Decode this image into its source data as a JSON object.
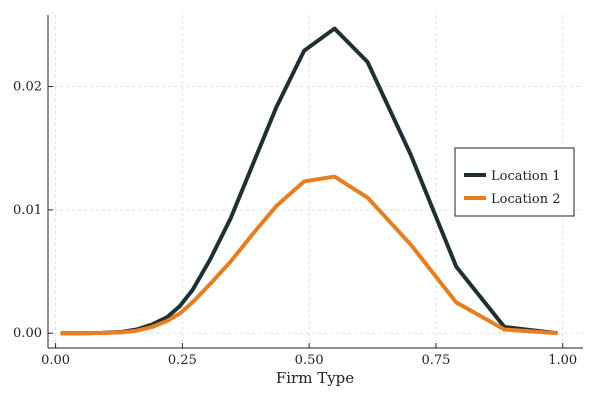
{
  "chart_data": {
    "type": "line",
    "title": "",
    "xlabel": "Firm Type",
    "ylabel": "",
    "xlim": [
      -0.015,
      1.04
    ],
    "ylim": [
      -0.0012,
      0.0258
    ],
    "xticks": [
      0.0,
      0.25,
      0.5,
      0.75,
      1.0
    ],
    "xtick_labels": [
      "0.00",
      "0.25",
      "0.50",
      "0.75",
      "1.00"
    ],
    "yticks": [
      0.0,
      0.01,
      0.02
    ],
    "ytick_labels": [
      "0.00",
      "0.01",
      "0.02"
    ],
    "grid": true,
    "legend_position": "right",
    "series": [
      {
        "name": "Location 1",
        "color": "#1f3035",
        "x": [
          0.01,
          0.05,
          0.09,
          0.13,
          0.16,
          0.19,
          0.22,
          0.245,
          0.27,
          0.305,
          0.345,
          0.39,
          0.435,
          0.49,
          0.55,
          0.615,
          0.7,
          0.79,
          0.885,
          0.99
        ],
        "y": [
          0.0,
          0.0,
          3e-05,
          0.0001,
          0.0003,
          0.0007,
          0.0013,
          0.0022,
          0.0035,
          0.006,
          0.0093,
          0.0138,
          0.0183,
          0.0229,
          0.0247,
          0.022,
          0.0145,
          0.0054,
          0.0005,
          0.0
        ]
      },
      {
        "name": "Location 2",
        "color": "#e67e22",
        "x": [
          0.01,
          0.05,
          0.09,
          0.13,
          0.16,
          0.19,
          0.22,
          0.245,
          0.27,
          0.305,
          0.345,
          0.39,
          0.435,
          0.49,
          0.55,
          0.615,
          0.7,
          0.79,
          0.885,
          0.99
        ],
        "y": [
          0.0,
          0.0,
          2e-05,
          7e-05,
          0.0002,
          0.0005,
          0.001,
          0.0016,
          0.0025,
          0.004,
          0.0058,
          0.0081,
          0.0103,
          0.0123,
          0.0127,
          0.011,
          0.0072,
          0.0025,
          0.0003,
          0.0
        ]
      }
    ]
  }
}
